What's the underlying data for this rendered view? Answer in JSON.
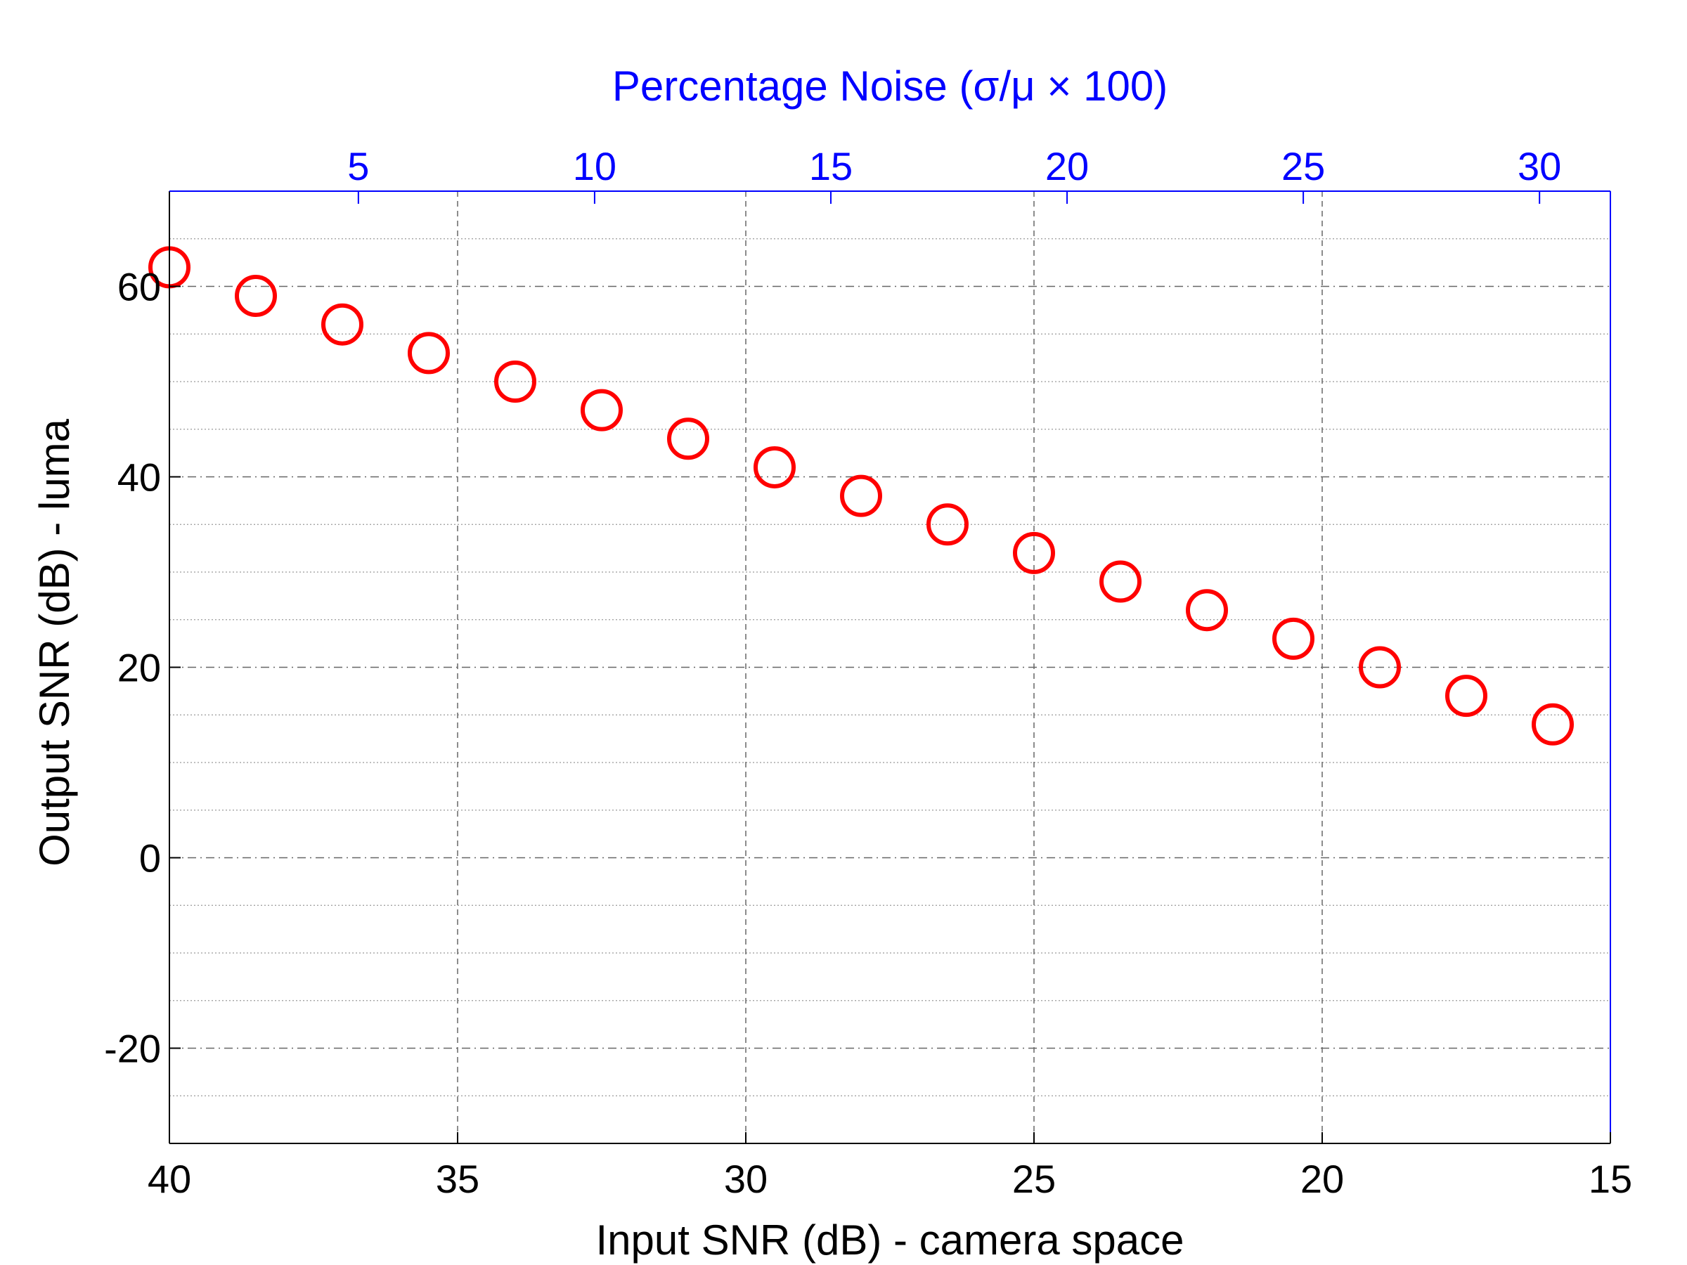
{
  "chart_data": {
    "type": "scatter",
    "title": "",
    "xlabel": "Input SNR (dB) - camera space",
    "ylabel": "Output SNR (dB) - luma",
    "x2label": "Percentage Noise (σ/μ × 100)",
    "xlim": [
      40,
      15
    ],
    "x_reversed": true,
    "ylim": [
      -30,
      70
    ],
    "x2lim": [
      1,
      31.5
    ],
    "xticks": [
      40,
      35,
      30,
      25,
      20,
      15
    ],
    "xtick_labels": [
      "40",
      "35",
      "30",
      "25",
      "20",
      "15"
    ],
    "yticks": [
      -20,
      0,
      20,
      40,
      60
    ],
    "ytick_labels": [
      "-20",
      "0",
      "20",
      "40",
      "60"
    ],
    "x2ticks": [
      5,
      10,
      15,
      20,
      25,
      30
    ],
    "x2tick_labels": [
      "5",
      "10",
      "15",
      "20",
      "25",
      "30"
    ],
    "grid": true,
    "marker": "circle",
    "colors": {
      "marker": "#ff0000",
      "axis": "#000000",
      "top_axis": "#0000ff",
      "grid": "#666666"
    },
    "series": [
      {
        "x": [
          40,
          38.5,
          37,
          35.5,
          34,
          32.5,
          31,
          29.5,
          28,
          26.5,
          25,
          23.5,
          22,
          20.5,
          19,
          17.5,
          16
        ],
        "y": [
          62,
          59,
          56,
          53,
          50,
          47,
          44,
          41,
          38,
          35,
          32,
          29,
          26,
          23,
          20,
          17,
          14
        ]
      }
    ]
  }
}
